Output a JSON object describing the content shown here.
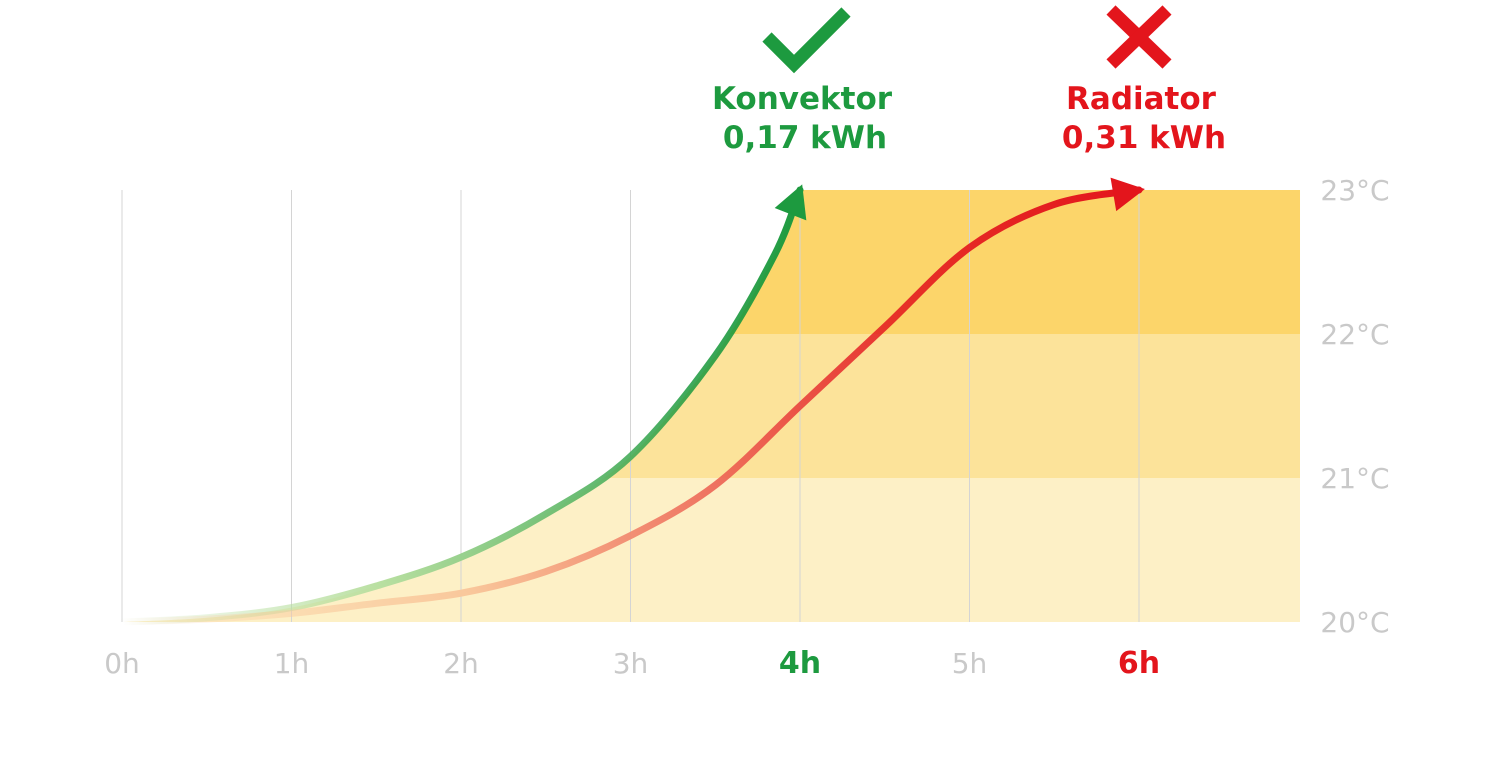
{
  "chart_data": {
    "type": "line",
    "title": "",
    "xlabel": "",
    "ylabel": "",
    "x_ticks": [
      {
        "label": "0h",
        "value": 0,
        "highlight": ""
      },
      {
        "label": "1h",
        "value": 1,
        "highlight": ""
      },
      {
        "label": "2h",
        "value": 2,
        "highlight": ""
      },
      {
        "label": "3h",
        "value": 3,
        "highlight": ""
      },
      {
        "label": "4h",
        "value": 4,
        "highlight": "green"
      },
      {
        "label": "5h",
        "value": 5,
        "highlight": ""
      },
      {
        "label": "6h",
        "value": 6,
        "highlight": "red"
      }
    ],
    "y_ticks": [
      {
        "label": "23°C",
        "value": 23
      },
      {
        "label": "22°C",
        "value": 22
      },
      {
        "label": "21°C",
        "value": 21
      },
      {
        "label": "20°C",
        "value": 20
      }
    ],
    "xlim": [
      0,
      6.95
    ],
    "ylim": [
      20,
      23
    ],
    "grid": "vertical",
    "bands": [
      {
        "from": 20,
        "to": 21,
        "color": "#fdf0c6"
      },
      {
        "from": 21,
        "to": 22,
        "color": "#fce39a"
      },
      {
        "from": 22,
        "to": 23,
        "color": "#fcd56a"
      }
    ],
    "series": [
      {
        "name": "Konvektor",
        "energy": "0,17 kWh",
        "verdict_icon": "check-icon",
        "color": "#1d9a3f",
        "light_color": "#b8dfa0",
        "x": [
          0,
          0.5,
          1,
          1.5,
          2,
          2.5,
          3,
          3.5,
          3.85,
          4.0
        ],
        "y": [
          20,
          20.03,
          20.1,
          20.25,
          20.45,
          20.75,
          21.15,
          21.85,
          22.55,
          23
        ]
      },
      {
        "name": "Radiator",
        "energy": "0,31 kWh",
        "verdict_icon": "cross-icon",
        "color": "#e3151c",
        "light_color": "#f9c79b",
        "x": [
          0,
          0.5,
          1,
          1.5,
          2,
          2.5,
          3,
          3.5,
          4,
          4.5,
          5,
          5.5,
          6
        ],
        "y": [
          20,
          20.02,
          20.06,
          20.13,
          20.2,
          20.35,
          20.6,
          20.95,
          21.5,
          22.05,
          22.6,
          22.9,
          23
        ]
      }
    ]
  }
}
